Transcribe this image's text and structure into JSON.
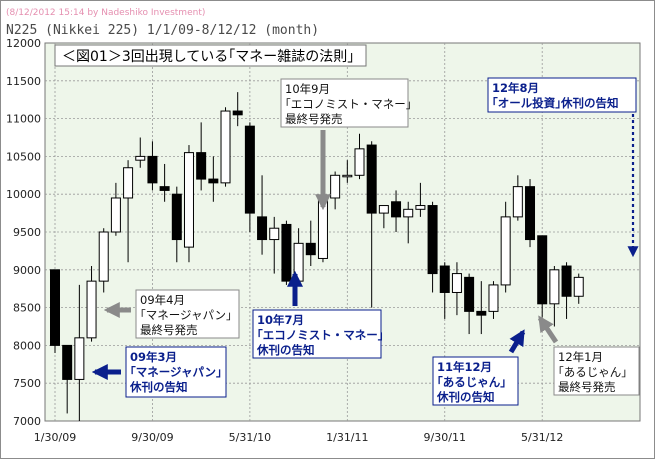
{
  "header": {
    "watermark": "(8/12/2012 15:14 by Nadeshiko Investment)",
    "subtitle": "N225 (Nikkei 225)  1/1/09-8/12/12 (month)"
  },
  "colors": {
    "background": "#ffffff",
    "plot_background": "#eef6ea",
    "bull_fill": "#ffffff",
    "bear_fill": "#000000",
    "navy_arrow": "#0a1f8c",
    "gray_arrow": "#8a8a8a"
  },
  "chart_data": {
    "type": "candlestick",
    "title": "＜図01＞3回出現している｢マネー雑誌の法則｣",
    "xlabel": "",
    "ylabel": "",
    "ylim": [
      7000,
      12000
    ],
    "yticks": [
      7000,
      7500,
      8000,
      8500,
      9000,
      9500,
      10000,
      10500,
      11000,
      11500,
      12000
    ],
    "xtick_labels": [
      "1/30/09",
      "9/30/09",
      "5/31/10",
      "1/31/11",
      "9/30/11",
      "5/31/12"
    ],
    "xtick_index": [
      0,
      8,
      16,
      24,
      32,
      40
    ],
    "grid": true,
    "candles": [
      {
        "date": "2009-01",
        "o": 9000,
        "h": 9000,
        "l": 7900,
        "c": 8000
      },
      {
        "date": "2009-02",
        "o": 8000,
        "h": 8000,
        "l": 7100,
        "c": 7550
      },
      {
        "date": "2009-03",
        "o": 7550,
        "h": 8800,
        "l": 7000,
        "c": 8100
      },
      {
        "date": "2009-04",
        "o": 8100,
        "h": 9050,
        "l": 8050,
        "c": 8850
      },
      {
        "date": "2009-05",
        "o": 8850,
        "h": 9550,
        "l": 8700,
        "c": 9500
      },
      {
        "date": "2009-06",
        "o": 9500,
        "h": 10150,
        "l": 9450,
        "c": 9950
      },
      {
        "date": "2009-07",
        "o": 9950,
        "h": 10450,
        "l": 9100,
        "c": 10350
      },
      {
        "date": "2009-08",
        "o": 10450,
        "h": 10750,
        "l": 10350,
        "c": 10500
      },
      {
        "date": "2009-09",
        "o": 10500,
        "h": 10700,
        "l": 10050,
        "c": 10150
      },
      {
        "date": "2009-10",
        "o": 10100,
        "h": 10400,
        "l": 9900,
        "c": 10050
      },
      {
        "date": "2009-11",
        "o": 10000,
        "h": 10100,
        "l": 9100,
        "c": 9400
      },
      {
        "date": "2009-12",
        "o": 9300,
        "h": 10650,
        "l": 9100,
        "c": 10550
      },
      {
        "date": "2010-01",
        "o": 10550,
        "h": 10950,
        "l": 10050,
        "c": 10200
      },
      {
        "date": "2010-02",
        "o": 10200,
        "h": 10500,
        "l": 9900,
        "c": 10150
      },
      {
        "date": "2010-03",
        "o": 10150,
        "h": 11150,
        "l": 10100,
        "c": 11100
      },
      {
        "date": "2010-04",
        "o": 11100,
        "h": 11350,
        "l": 10900,
        "c": 11050
      },
      {
        "date": "2010-05",
        "o": 10900,
        "h": 10950,
        "l": 9500,
        "c": 9750
      },
      {
        "date": "2010-06",
        "o": 9700,
        "h": 10250,
        "l": 9200,
        "c": 9400
      },
      {
        "date": "2010-07",
        "o": 9400,
        "h": 9700,
        "l": 8950,
        "c": 9550
      },
      {
        "date": "2010-08",
        "o": 9600,
        "h": 9650,
        "l": 8800,
        "c": 8850
      },
      {
        "date": "2010-09",
        "o": 8850,
        "h": 9550,
        "l": 8800,
        "c": 9350
      },
      {
        "date": "2010-10",
        "o": 9350,
        "h": 9650,
        "l": 9050,
        "c": 9200
      },
      {
        "date": "2010-11",
        "o": 9150,
        "h": 10100,
        "l": 9100,
        "c": 9950
      },
      {
        "date": "2010-12",
        "o": 9950,
        "h": 10300,
        "l": 9800,
        "c": 10250
      },
      {
        "date": "2011-01",
        "o": 10250,
        "h": 10450,
        "l": 10150,
        "c": 10250
      },
      {
        "date": "2011-02",
        "o": 10250,
        "h": 10800,
        "l": 10200,
        "c": 10600
      },
      {
        "date": "2011-03",
        "o": 10650,
        "h": 10700,
        "l": 8500,
        "c": 9750
      },
      {
        "date": "2011-04",
        "o": 9750,
        "h": 9850,
        "l": 9550,
        "c": 9850
      },
      {
        "date": "2011-05",
        "o": 9900,
        "h": 10050,
        "l": 9500,
        "c": 9700
      },
      {
        "date": "2011-06",
        "o": 9700,
        "h": 9900,
        "l": 9350,
        "c": 9800
      },
      {
        "date": "2011-07",
        "o": 9800,
        "h": 10150,
        "l": 9700,
        "c": 9850
      },
      {
        "date": "2011-08",
        "o": 9850,
        "h": 9900,
        "l": 8700,
        "c": 8950
      },
      {
        "date": "2011-09",
        "o": 9050,
        "h": 9100,
        "l": 8350,
        "c": 8700
      },
      {
        "date": "2011-10",
        "o": 8700,
        "h": 9100,
        "l": 8400,
        "c": 8950
      },
      {
        "date": "2011-11",
        "o": 8900,
        "h": 8950,
        "l": 8150,
        "c": 8450
      },
      {
        "date": "2011-12",
        "o": 8450,
        "h": 8850,
        "l": 8150,
        "c": 8400
      },
      {
        "date": "2012-01",
        "o": 8450,
        "h": 8850,
        "l": 8350,
        "c": 8800
      },
      {
        "date": "2012-02",
        "o": 8800,
        "h": 9900,
        "l": 8700,
        "c": 9700
      },
      {
        "date": "2012-03",
        "o": 9700,
        "h": 10250,
        "l": 9650,
        "c": 10100
      },
      {
        "date": "2012-04",
        "o": 10100,
        "h": 10200,
        "l": 9300,
        "c": 9400
      },
      {
        "date": "2012-05",
        "o": 9450,
        "h": 9450,
        "l": 8300,
        "c": 8550
      },
      {
        "date": "2012-06",
        "o": 8550,
        "h": 9050,
        "l": 8250,
        "c": 9000
      },
      {
        "date": "2012-07",
        "o": 9050,
        "h": 9100,
        "l": 8350,
        "c": 8650
      },
      {
        "date": "2012-08",
        "o": 8650,
        "h": 8950,
        "l": 8550,
        "c": 8900
      }
    ],
    "annotations": [
      {
        "id": "ann-0904",
        "lines": [
          "09年4月",
          "｢マネージャパン｣",
          "最終号発売"
        ],
        "style": "gray-box",
        "arrow": "gray",
        "target": "2009-04"
      },
      {
        "id": "ann-0903",
        "lines": [
          "09年3月",
          "｢マネージャパン｣",
          "休刊の告知"
        ],
        "style": "navy-box",
        "arrow": "navy",
        "target": "2009-03"
      },
      {
        "id": "ann-1009",
        "lines": [
          "10年9月",
          "｢エコノミスト・マネー｣",
          "最終号発売"
        ],
        "style": "gray-box",
        "arrow": "gray",
        "target": "2010-09"
      },
      {
        "id": "ann-1007",
        "lines": [
          "10年7月",
          "｢エコノミスト・マネー｣",
          "休刊の告知"
        ],
        "style": "navy-box",
        "arrow": "navy",
        "target": "2010-07"
      },
      {
        "id": "ann-1112",
        "lines": [
          "11年12月",
          "｢あるじゃん｣",
          "休刊の告知"
        ],
        "style": "navy-box",
        "arrow": "navy",
        "target": "2011-12"
      },
      {
        "id": "ann-1201",
        "lines": [
          "12年1月",
          "｢あるじゃん｣",
          "最終号発売"
        ],
        "style": "gray-box",
        "arrow": "gray",
        "target": "2012-01"
      },
      {
        "id": "ann-1208",
        "lines": [
          "12年8月",
          "｢オール投資｣休刊の告知"
        ],
        "style": "navy-box",
        "arrow": "navy-dotted",
        "target": "2012-08"
      }
    ]
  }
}
